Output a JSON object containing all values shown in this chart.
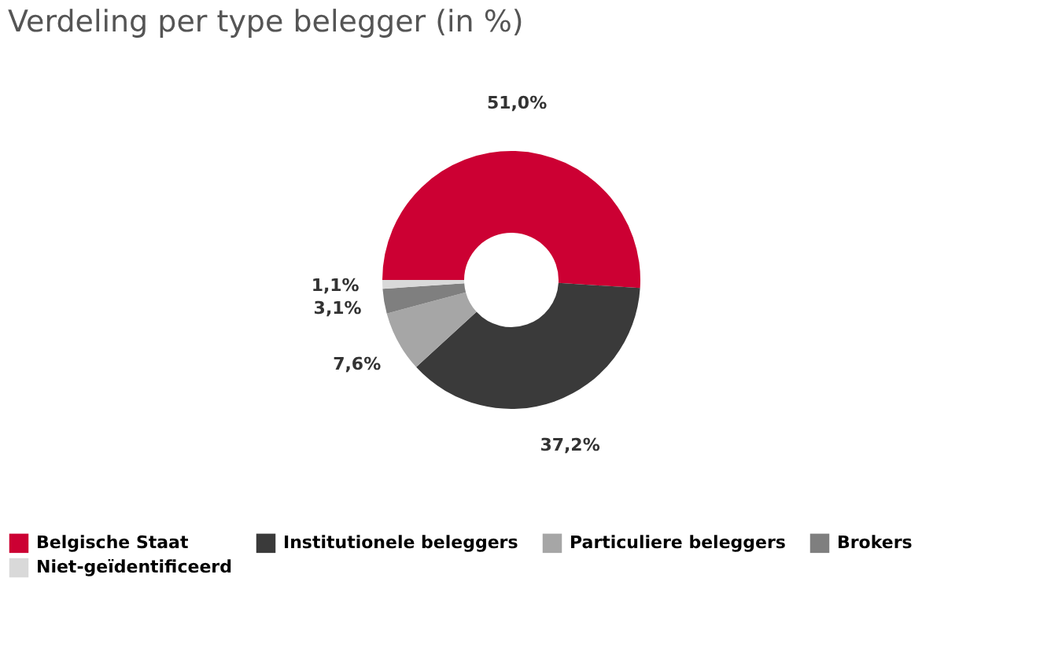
{
  "chart_data": {
    "type": "donut",
    "title": "Verdeling per type belegger (in %)",
    "categories": [
      "Belgische Staat",
      "Institutionele beleggers",
      "Particuliere beleggers",
      "Brokers",
      "Niet-geïdentificeerd"
    ],
    "values": [
      51.0,
      37.2,
      7.6,
      3.1,
      1.1
    ],
    "value_labels": [
      "51,0%",
      "37,2%",
      "7,6%",
      "3,1%",
      "1,1%"
    ],
    "colors": [
      "#cc0033",
      "#3a3a3a",
      "#a6a6a6",
      "#7f7f7f",
      "#d9d9d9"
    ],
    "legend": "bottom"
  }
}
